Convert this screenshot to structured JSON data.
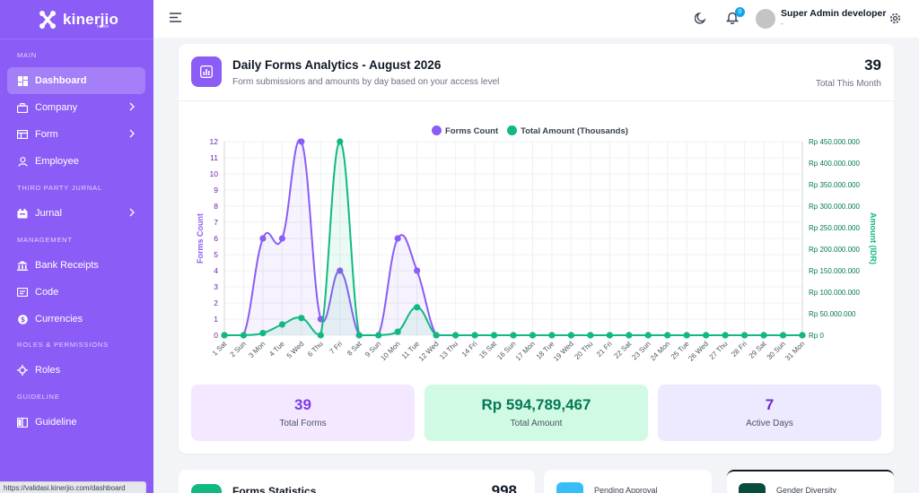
{
  "sidebar": {
    "brand": "kinerjio",
    "brand_sub": "online",
    "sections": {
      "main": "MAIN",
      "third": "THIRD PARTY JURNAL",
      "management": "MANAGEMENT",
      "roles": "ROLES & PERMISSIONS",
      "guideline": "GUIDELINE"
    },
    "items": [
      {
        "label": "Dashboard",
        "icon": "dashboard-icon"
      },
      {
        "label": "Company",
        "icon": "building-icon"
      },
      {
        "label": "Form",
        "icon": "form-icon"
      },
      {
        "label": "Employee",
        "icon": "user-icon"
      },
      {
        "label": "Jurnal",
        "icon": "jurnal-icon"
      },
      {
        "label": "Bank Receipts",
        "icon": "bank-icon"
      },
      {
        "label": "Code",
        "icon": "code-icon"
      },
      {
        "label": "Currencies",
        "icon": "currency-icon"
      },
      {
        "label": "Roles",
        "icon": "roles-icon"
      },
      {
        "label": "Guideline",
        "icon": "book-icon"
      }
    ]
  },
  "status_url": "https://validasi.kinerjio.com/dashboard",
  "header": {
    "notifications": "0",
    "user_name": "Super Admin developer",
    "user_role": "-"
  },
  "card": {
    "title": "Daily Forms Analytics - August 2026",
    "subtitle": "Form submissions and amounts by day based on your access level",
    "total_value": "39",
    "total_label": "Total This Month"
  },
  "chart_data": {
    "type": "line",
    "legend": [
      "Forms Count",
      "Total Amount (Thousands)"
    ],
    "ylabel": "Forms Count",
    "y2label": "Amount (IDR)",
    "ylim": [
      0,
      12
    ],
    "y2lim": [
      0,
      450000000
    ],
    "y_ticks": [
      "0",
      "1",
      "2",
      "3",
      "4",
      "5",
      "6",
      "7",
      "8",
      "9",
      "10",
      "11",
      "12"
    ],
    "y2_ticks": [
      "Rp 0",
      "Rp 50.000.000",
      "Rp 100.000.000",
      "Rp 150.000.000",
      "Rp 200.000.000",
      "Rp 250.000.000",
      "Rp 300.000.000",
      "Rp 350.000.000",
      "Rp 400.000.000",
      "Rp 450.000.000"
    ],
    "categories": [
      "1 Sat",
      "2 Sun",
      "3 Mon",
      "4 Tue",
      "5 Wed",
      "6 Thu",
      "7 Fri",
      "8 Sat",
      "9 Sun",
      "10 Mon",
      "11 Tue",
      "12 Wed",
      "13 Thu",
      "14 Fri",
      "15 Sat",
      "16 Sun",
      "17 Mon",
      "18 Tue",
      "19 Wed",
      "20 Thu",
      "21 Fri",
      "22 Sat",
      "23 Sun",
      "24 Mon",
      "25 Tue",
      "26 Wed",
      "27 Thu",
      "28 Fri",
      "29 Sat",
      "30 Sun",
      "31 Mon"
    ],
    "series": [
      {
        "name": "Forms Count",
        "color": "#8b5cf6",
        "values": [
          0,
          0,
          6,
          6,
          12,
          1,
          4,
          0,
          0,
          6,
          4,
          0,
          0,
          0,
          0,
          0,
          0,
          0,
          0,
          0,
          0,
          0,
          0,
          0,
          0,
          0,
          0,
          0,
          0,
          0,
          0
        ]
      },
      {
        "name": "Total Amount (Thousands)",
        "color": "#10b981",
        "values": [
          0,
          0,
          5000000,
          25000000,
          40000000,
          0,
          450000000,
          0,
          0,
          8000000,
          65000000,
          0,
          0,
          0,
          0,
          0,
          0,
          0,
          0,
          0,
          0,
          0,
          0,
          0,
          0,
          0,
          0,
          0,
          0,
          0,
          0
        ]
      }
    ],
    "grid": true,
    "legend_position": "top-center"
  },
  "stats": [
    {
      "value": "39",
      "label": "Total Forms",
      "bg": "#f3e8ff",
      "color": "#7c3aed"
    },
    {
      "value": "Rp 594,789,467",
      "label": "Total Amount",
      "bg": "#d1fae5",
      "color": "#047857"
    },
    {
      "value": "7",
      "label": "Active Days",
      "bg": "#ede9fe",
      "color": "#6d28d9"
    }
  ],
  "bottom": {
    "forms_stats_title": "Forms Statistics",
    "forms_stats_value": "998",
    "pending_title": "Pending Approval",
    "gender_title": "Gender Diversity"
  }
}
